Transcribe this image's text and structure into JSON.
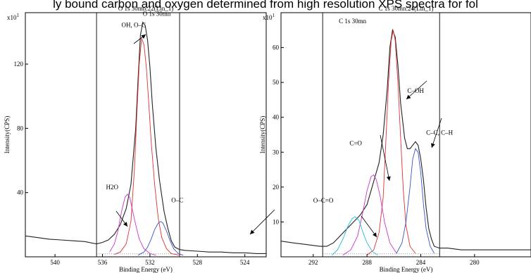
{
  "caption": "ly bound carbon and oxygen determined from high resolution XPS spectra for fol",
  "chart_data": [
    {
      "type": "line",
      "title": "O 1s 30mn:22(Lin_1)",
      "region_label": "O 1s 30mn",
      "xlabel": "Binding Energy (eV)",
      "ylabel": "Intensity(CPS)",
      "y_multiplier": "x10",
      "y_multiplier_exp": "1",
      "xlim": [
        542.5,
        522.2
      ],
      "ylim": [
        0,
        152
      ],
      "x_ticks": [
        540,
        536,
        532,
        528,
        524
      ],
      "y_ticks": [
        40,
        80,
        120
      ],
      "region_bounds": [
        536.5,
        529.5
      ],
      "series": [
        {
          "color": "#222222",
          "points": [
            [
              542.5,
              13
            ],
            [
              541.5,
              12
            ],
            [
              540.5,
              11
            ],
            [
              539.5,
              10.5
            ],
            [
              538.5,
              10
            ],
            [
              537.5,
              9.5
            ],
            [
              536.5,
              8
            ],
            [
              536,
              9
            ],
            [
              535.5,
              10.5
            ],
            [
              535,
              14
            ],
            [
              534.5,
              20
            ],
            [
              534,
              30
            ],
            [
              533.6,
              45
            ],
            [
              533.2,
              80
            ],
            [
              533,
              110
            ],
            [
              532.8,
              138
            ],
            [
              532.6,
              146
            ],
            [
              532.4,
              144
            ],
            [
              532.2,
              135
            ],
            [
              532,
              118
            ],
            [
              531.8,
              95
            ],
            [
              531.5,
              68
            ],
            [
              531.2,
              48
            ],
            [
              531,
              38
            ],
            [
              530.8,
              28
            ],
            [
              530.5,
              18
            ],
            [
              530.2,
              10
            ],
            [
              529.9,
              6
            ],
            [
              529.5,
              4.5
            ],
            [
              529,
              4
            ],
            [
              528,
              3.5
            ],
            [
              527,
              3
            ],
            [
              526,
              3
            ],
            [
              525,
              2.5
            ],
            [
              524,
              2.5
            ],
            [
              523,
              2
            ],
            [
              522.2,
              2
            ]
          ]
        },
        {
          "color": "#dd3333",
          "points": [
            [
              535,
              1.5
            ],
            [
              534.5,
              3
            ],
            [
              534,
              8
            ],
            [
              533.6,
              22
            ],
            [
              533.3,
              55
            ],
            [
              533.1,
              90
            ],
            [
              532.9,
              120
            ],
            [
              532.7,
              136
            ],
            [
              532.5,
              132
            ],
            [
              532.3,
              118
            ],
            [
              532.1,
              96
            ],
            [
              531.9,
              72
            ],
            [
              531.6,
              45
            ],
            [
              531.3,
              24
            ],
            [
              531,
              12
            ],
            [
              530.6,
              5
            ],
            [
              530.2,
              2
            ],
            [
              529.5,
              1
            ]
          ]
        },
        {
          "color": "#cc33cc",
          "points": [
            [
              535.4,
              3
            ],
            [
              535,
              8
            ],
            [
              534.7,
              16
            ],
            [
              534.4,
              28
            ],
            [
              534.1,
              37
            ],
            [
              533.9,
              39
            ],
            [
              533.7,
              37
            ],
            [
              533.5,
              30
            ],
            [
              533.2,
              20
            ],
            [
              532.9,
              11
            ],
            [
              532.5,
              5
            ],
            [
              532,
              2
            ],
            [
              531.5,
              1
            ]
          ]
        },
        {
          "color": "#3355cc",
          "points": [
            [
              533,
              1
            ],
            [
              532.5,
              3
            ],
            [
              532.2,
              6
            ],
            [
              531.9,
              11
            ],
            [
              531.6,
              17
            ],
            [
              531.3,
              21
            ],
            [
              531.1,
              22
            ],
            [
              530.9,
              21
            ],
            [
              530.6,
              16
            ],
            [
              530.3,
              10
            ],
            [
              530,
              5
            ],
            [
              529.6,
              2
            ],
            [
              529.2,
              1
            ]
          ]
        }
      ],
      "peak_labels": [
        {
          "text": "O 1s 30mn",
          "x": 532.6,
          "y": 150
        },
        {
          "text": "OH, O–C",
          "x": 534.4,
          "y": 143
        },
        {
          "text": "H2O",
          "x": 535.7,
          "y": 42
        },
        {
          "text": "O–C",
          "x": 530.2,
          "y": 34
        }
      ]
    },
    {
      "type": "line",
      "title": "C 1s 30mn:24(Lin_1)",
      "region_label": "C 1s 30mn",
      "xlabel": "Binding Energy (eV)",
      "ylabel": "Intensity(CPS)",
      "y_multiplier": "x10",
      "y_multiplier_exp": "1",
      "xlim": [
        294.4,
        275.8
      ],
      "ylim": [
        0,
        70
      ],
      "x_ticks": [
        292,
        288,
        284,
        280
      ],
      "y_ticks": [
        10,
        20,
        30,
        40,
        50,
        60
      ],
      "region_bounds": [
        291.3,
        282.6
      ],
      "series": [
        {
          "color": "#222222",
          "points": [
            [
              294.4,
              4.5
            ],
            [
              293.5,
              4
            ],
            [
              292.5,
              3.5
            ],
            [
              291.5,
              3
            ],
            [
              291,
              3
            ],
            [
              290.5,
              4
            ],
            [
              290,
              6
            ],
            [
              289.5,
              8
            ],
            [
              289,
              10
            ],
            [
              288.5,
              12
            ],
            [
              288,
              15
            ],
            [
              287.7,
              19
            ],
            [
              287.4,
              23
            ],
            [
              287.1,
              27
            ],
            [
              286.8,
              35
            ],
            [
              286.5,
              48
            ],
            [
              286.3,
              60
            ],
            [
              286.1,
              65
            ],
            [
              285.9,
              63
            ],
            [
              285.7,
              55
            ],
            [
              285.5,
              44
            ],
            [
              285.2,
              34
            ],
            [
              285,
              31
            ],
            [
              284.8,
              31
            ],
            [
              284.6,
              32
            ],
            [
              284.4,
              33
            ],
            [
              284.2,
              32
            ],
            [
              284,
              28
            ],
            [
              283.8,
              22
            ],
            [
              283.6,
              14
            ],
            [
              283.4,
              8
            ],
            [
              283.2,
              5
            ],
            [
              283,
              3
            ],
            [
              282.6,
              2.5
            ],
            [
              282,
              2.5
            ],
            [
              281,
              2
            ],
            [
              279,
              2
            ],
            [
              277,
              2
            ],
            [
              275.8,
              2
            ]
          ]
        },
        {
          "color": "#dd3333",
          "points": [
            [
              288,
              0.5
            ],
            [
              287.5,
              2
            ],
            [
              287.1,
              7
            ],
            [
              286.8,
              17
            ],
            [
              286.6,
              33
            ],
            [
              286.4,
              50
            ],
            [
              286.2,
              62
            ],
            [
              286.05,
              65
            ],
            [
              285.9,
              62
            ],
            [
              285.7,
              50
            ],
            [
              285.5,
              34
            ],
            [
              285.3,
              19
            ],
            [
              285.1,
              9
            ],
            [
              284.8,
              3
            ],
            [
              284.4,
              1
            ]
          ]
        },
        {
          "color": "#cc33cc",
          "points": [
            [
              289.8,
              0.5
            ],
            [
              289.2,
              2
            ],
            [
              288.7,
              6
            ],
            [
              288.3,
              13
            ],
            [
              288,
              19
            ],
            [
              287.7,
              23
            ],
            [
              287.5,
              23.5
            ],
            [
              287.3,
              22
            ],
            [
              287,
              17
            ],
            [
              286.7,
              10
            ],
            [
              286.3,
              4
            ],
            [
              285.8,
              1
            ]
          ]
        },
        {
          "color": "#22bbdd",
          "points": [
            [
              290.6,
              0.5
            ],
            [
              290.2,
              2
            ],
            [
              289.8,
              5
            ],
            [
              289.4,
              9
            ],
            [
              289.1,
              11
            ],
            [
              288.9,
              11.5
            ],
            [
              288.6,
              10.5
            ],
            [
              288.3,
              7
            ],
            [
              288,
              4
            ],
            [
              287.6,
              1.5
            ],
            [
              287.2,
              0.5
            ]
          ]
        },
        {
          "color": "#3355cc",
          "points": [
            [
              285.8,
              1
            ],
            [
              285.4,
              4
            ],
            [
              285.1,
              10
            ],
            [
              284.8,
              20
            ],
            [
              284.6,
              28
            ],
            [
              284.4,
              31
            ],
            [
              284.2,
              30
            ],
            [
              284,
              24
            ],
            [
              283.8,
              15
            ],
            [
              283.6,
              8
            ],
            [
              283.3,
              3
            ],
            [
              283,
              1
            ]
          ]
        }
      ],
      "peak_labels": [
        {
          "text": "C 1s 30mn",
          "x": 290.1,
          "y": 67
        },
        {
          "text": "C–OH",
          "x": 285,
          "y": 47
        },
        {
          "text": "C–C, C–H",
          "x": 283.6,
          "y": 35
        },
        {
          "text": "C=O",
          "x": 289.3,
          "y": 32
        },
        {
          "text": "O–C=O",
          "x": 292,
          "y": 15.5
        }
      ]
    }
  ]
}
